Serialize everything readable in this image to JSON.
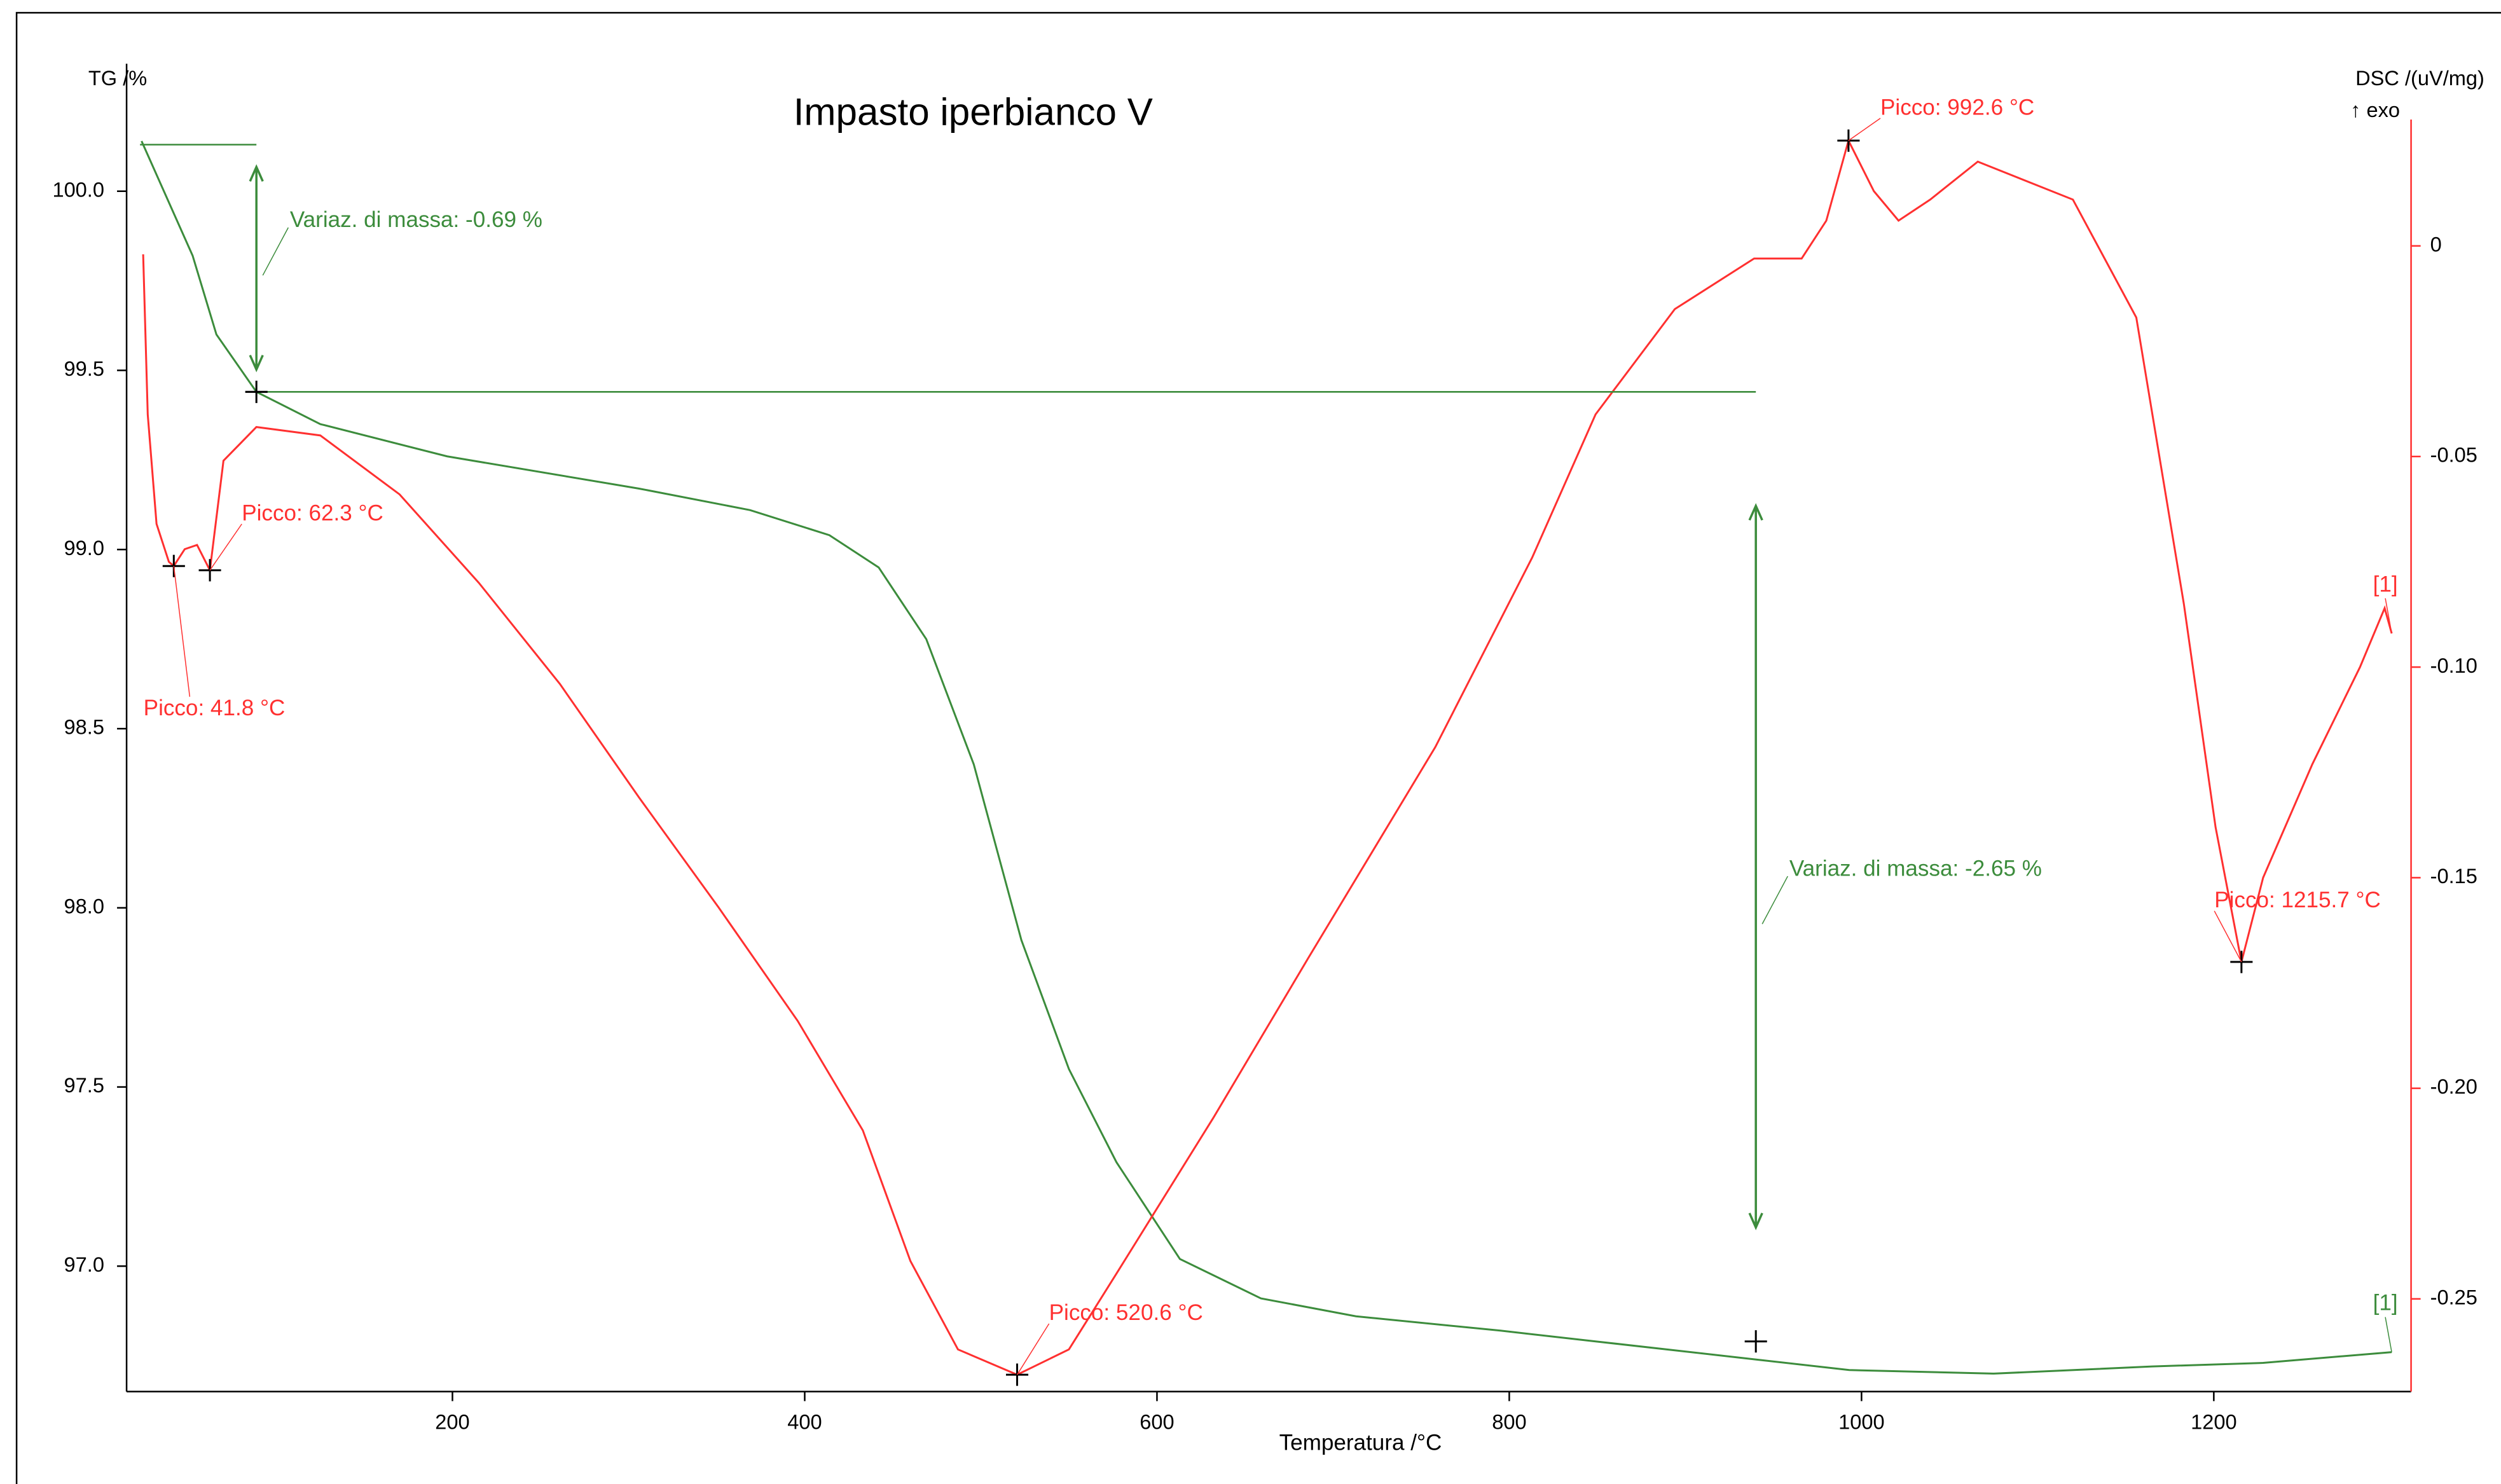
{
  "chart_data": {
    "type": "line",
    "title": "Impasto iperbianco V",
    "y_label": "TG /%",
    "y2_label": "DSC /(uV/mg)",
    "y2_sublabel": "↑ exo",
    "x_label": "Temperatura /°C",
    "xlim": [
      15,
      1312
    ],
    "ylim": [
      96.65,
      100.2
    ],
    "y2lim": [
      -0.272,
      0.03
    ],
    "xticks": [
      200,
      400,
      600,
      800,
      1000,
      1200
    ],
    "yticks": [
      {
        "value": 100,
        "label": "100.0"
      },
      99.5,
      {
        "value": 99,
        "label": "99.0"
      },
      98.5,
      {
        "value": 98,
        "label": "98.0"
      },
      97.5,
      {
        "value": 97,
        "label": "97.0"
      }
    ],
    "y2ticks": [
      0,
      -0.05,
      {
        "value": -0.1,
        "label": "-0.10"
      },
      -0.15,
      {
        "value": -0.2,
        "label": "-0.20"
      },
      -0.25
    ],
    "series": [
      {
        "color": "#3c8c3c",
        "axis": "y",
        "end_label": "[1]",
        "x": [
          23.5,
          52.5,
          66,
          88.7,
          125,
          197,
          306,
          369,
          414,
          442,
          469,
          496,
          523,
          550,
          577,
          613,
          659,
          713,
          795,
          849,
          939,
          993,
          1075,
          1165,
          1228,
          1301
        ],
        "values": [
          100.14,
          99.82,
          99.6,
          99.44,
          99.35,
          99.26,
          99.17,
          99.11,
          99.04,
          98.95,
          98.75,
          98.4,
          97.91,
          97.55,
          97.29,
          97.02,
          96.91,
          96.86,
          96.82,
          96.79,
          96.74,
          96.71,
          96.7,
          96.72,
          96.73,
          96.76
        ]
      },
      {
        "color": "#ff3030",
        "axis": "y2",
        "end_label": "[1]",
        "x": [
          24.4,
          27,
          32,
          39,
          41.8,
          48,
          55,
          62.3,
          70,
          88.7,
          125,
          170,
          215,
          261,
          306,
          351,
          396,
          433,
          460,
          487,
          520.6,
          550,
          577,
          632,
          686,
          758,
          813,
          849,
          894,
          939,
          966,
          980,
          992.6,
          1007,
          1021,
          1039,
          1066,
          1120,
          1156,
          1183,
          1201,
          1215.7,
          1228,
          1256,
          1283,
          1297,
          1301
        ],
        "values": [
          -0.002,
          -0.04,
          -0.066,
          -0.075,
          -0.076,
          -0.072,
          -0.071,
          -0.077,
          -0.051,
          -0.043,
          -0.045,
          -0.059,
          -0.08,
          -0.104,
          -0.131,
          -0.157,
          -0.184,
          -0.21,
          -0.241,
          -0.262,
          -0.268,
          -0.262,
          -0.244,
          -0.207,
          -0.169,
          -0.119,
          -0.074,
          -0.04,
          -0.015,
          -0.003,
          -0.003,
          0.006,
          0.025,
          0.013,
          0.006,
          0.011,
          0.02,
          0.011,
          -0.017,
          -0.085,
          -0.138,
          -0.17,
          -0.15,
          -0.123,
          -0.1,
          -0.086,
          -0.092
        ]
      }
    ],
    "peaks": [
      {
        "label": "Picco: 41.8 °C",
        "x": 41.8,
        "y": -0.076
      },
      {
        "label": "Picco: 62.3 °C",
        "x": 62.3,
        "y": -0.077
      },
      {
        "label": "Picco: 520.6 °C",
        "x": 520.6,
        "y": -0.268
      },
      {
        "label": "Picco: 992.6 °C",
        "x": 992.6,
        "y": 0.025
      },
      {
        "label": "Picco: 1215.7 °C",
        "x": 1215.7,
        "y": -0.17
      }
    ],
    "mass_changes": [
      {
        "label": "Variaz. di massa: -0.69 %",
        "x": 88.7,
        "y_start": 100.13,
        "y_end": 99.44
      },
      {
        "label": "Variaz. di massa: -2.65 %",
        "x": 940,
        "y_start": 99.44,
        "y_end": 96.79
      }
    ]
  }
}
